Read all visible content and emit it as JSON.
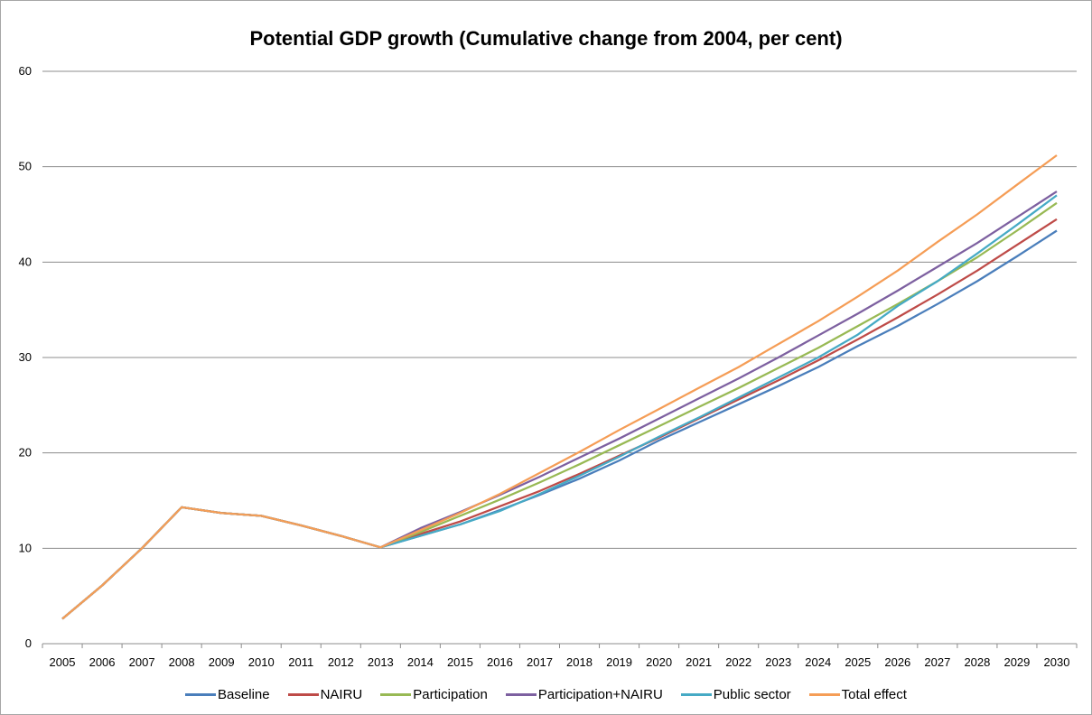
{
  "chart_data": {
    "type": "line",
    "title": "Potential GDP growth (Cumulative change from 2004, per cent)",
    "xlabel": "",
    "ylabel": "",
    "ylim": [
      0,
      60
    ],
    "yticks": [
      0,
      10,
      20,
      30,
      40,
      50,
      60
    ],
    "grid": true,
    "legend_position": "bottom",
    "categories": [
      "2005",
      "2006",
      "2007",
      "2008",
      "2009",
      "2010",
      "2011",
      "2012",
      "2013",
      "2014",
      "2015",
      "2016",
      "2017",
      "2018",
      "2019",
      "2020",
      "2021",
      "2022",
      "2023",
      "2024",
      "2025",
      "2026",
      "2027",
      "2028",
      "2029",
      "2030"
    ],
    "series": [
      {
        "name": "Baseline",
        "color": "#4a7ebb",
        "values": [
          2.6,
          6.1,
          10.0,
          14.3,
          13.7,
          13.4,
          12.4,
          11.3,
          10.1,
          11.3,
          12.5,
          14.0,
          15.6,
          17.3,
          19.2,
          21.3,
          23.2,
          25.1,
          27.0,
          29.0,
          31.2,
          33.3,
          35.6,
          38.0,
          40.6,
          43.3
        ]
      },
      {
        "name": "NAIRU",
        "color": "#be4b48",
        "values": [
          2.6,
          6.1,
          10.0,
          14.3,
          13.7,
          13.4,
          12.4,
          11.3,
          10.1,
          11.5,
          12.8,
          14.4,
          16.0,
          17.8,
          19.7,
          21.6,
          23.6,
          25.6,
          27.6,
          29.7,
          31.9,
          34.2,
          36.6,
          39.1,
          41.8,
          44.5
        ]
      },
      {
        "name": "Participation",
        "color": "#98b954",
        "values": [
          2.6,
          6.1,
          10.0,
          14.3,
          13.7,
          13.4,
          12.4,
          11.3,
          10.1,
          11.7,
          13.4,
          15.1,
          16.9,
          18.8,
          20.8,
          22.8,
          24.8,
          26.8,
          28.9,
          31.0,
          33.3,
          35.6,
          38.0,
          40.5,
          43.3,
          46.2
        ]
      },
      {
        "name": "Participation+NAIRU",
        "color": "#7d60a0",
        "values": [
          2.6,
          6.1,
          10.0,
          14.3,
          13.7,
          13.4,
          12.4,
          11.3,
          10.1,
          12.1,
          13.8,
          15.6,
          17.5,
          19.5,
          21.5,
          23.6,
          25.7,
          27.8,
          30.0,
          32.3,
          34.6,
          37.0,
          39.5,
          42.0,
          44.7,
          47.4
        ]
      },
      {
        "name": "Public sector",
        "color": "#46aac5",
        "values": [
          2.6,
          6.1,
          10.0,
          14.3,
          13.7,
          13.4,
          12.4,
          11.3,
          10.1,
          11.3,
          12.5,
          13.9,
          15.7,
          17.6,
          19.6,
          21.7,
          23.7,
          25.8,
          27.9,
          30.0,
          32.4,
          35.4,
          38.0,
          40.9,
          43.9,
          47.0
        ]
      },
      {
        "name": "Total effect",
        "color": "#f59d56",
        "values": [
          2.6,
          6.1,
          10.0,
          14.3,
          13.7,
          13.4,
          12.4,
          11.3,
          10.1,
          11.9,
          13.7,
          15.7,
          17.9,
          20.1,
          22.4,
          24.6,
          26.8,
          29.0,
          31.4,
          33.8,
          36.4,
          39.1,
          42.1,
          45.0,
          48.1,
          51.2
        ]
      }
    ]
  }
}
